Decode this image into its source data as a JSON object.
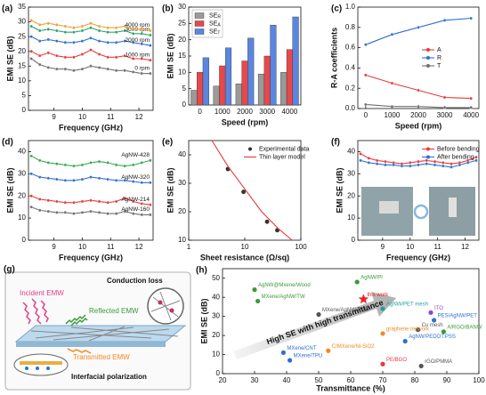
{
  "chart_data": [
    {
      "type": "line",
      "panel": "(a)",
      "xlabel": "Frequency (GHz)",
      "ylabel": "EMI SE (dB)",
      "legend": "inline",
      "x": [
        8.2,
        8.5,
        8.8,
        9.1,
        9.4,
        9.7,
        10.0,
        10.3,
        10.6,
        10.9,
        11.2,
        11.5,
        11.8,
        12.1,
        12.4
      ],
      "xlim": [
        8.1,
        12.5
      ],
      "xticks": [
        9,
        10,
        11,
        12
      ],
      "ylim": [
        0,
        35
      ],
      "yticks": [
        0,
        5,
        10,
        15,
        20,
        25,
        30,
        35
      ],
      "series": [
        {
          "name": "0 rpm",
          "color": "#707070",
          "values": [
            17.5,
            15.5,
            14.5,
            14,
            14,
            13.5,
            14,
            15,
            14.5,
            14,
            13.5,
            13.5,
            13,
            12.5,
            12.5
          ]
        },
        {
          "name": "1000 rpm",
          "color": "#e8393b",
          "values": [
            20,
            18.5,
            19.5,
            18.5,
            18,
            18,
            19,
            20.5,
            19,
            18,
            18,
            18.5,
            17.5,
            17.5,
            17
          ]
        },
        {
          "name": "2000 rpm",
          "color": "#2f6fcf",
          "values": [
            25,
            23.5,
            24,
            23.5,
            23,
            23,
            23.5,
            24.5,
            23.5,
            23,
            23,
            23.5,
            23,
            22.5,
            22
          ]
        },
        {
          "name": "3000 rpm",
          "color": "#2aa36b",
          "values": [
            28.5,
            27,
            27.5,
            27,
            26.5,
            26.5,
            27,
            28,
            27,
            26.5,
            26.5,
            27,
            26,
            26,
            25.5
          ]
        },
        {
          "name": "4000 rpm",
          "color": "#f0a030",
          "values": [
            30.5,
            29,
            29.5,
            29,
            28.5,
            28,
            28.5,
            29.5,
            28.5,
            28,
            28,
            28.5,
            27.5,
            27.5,
            27
          ]
        }
      ]
    },
    {
      "type": "bar",
      "panel": "(b)",
      "xlabel": "Speed (rpm)",
      "ylabel": "EMI SE (dB)",
      "legend": "upper left",
      "categories": [
        "0",
        "1000",
        "2000",
        "3000",
        "4000"
      ],
      "ylim": [
        0,
        30
      ],
      "yticks": [
        0,
        5,
        10,
        15,
        20,
        25,
        30
      ],
      "series": [
        {
          "name": "SER",
          "color": "#9a9a9a",
          "values": [
            4.5,
            5.8,
            6.5,
            9.5,
            10
          ]
        },
        {
          "name": "SEA",
          "color": "#e8484a",
          "values": [
            10,
            12,
            13.5,
            15,
            17
          ]
        },
        {
          "name": "SET",
          "color": "#5a86e0",
          "values": [
            14.5,
            17.5,
            20.5,
            24.5,
            27
          ]
        }
      ]
    },
    {
      "type": "line",
      "panel": "(c)",
      "xlabel": "Speed (rpm)",
      "ylabel": "R-A coefficients",
      "legend": "center right",
      "x": [
        0,
        1000,
        2000,
        3000,
        4000
      ],
      "xlim": [
        -300,
        4300
      ],
      "xticks": [
        0,
        1000,
        2000,
        3000,
        4000
      ],
      "ylim": [
        0,
        1
      ],
      "yticks": [
        {
          "value": 0,
          "label": "0.0"
        },
        {
          "value": 0.2,
          "label": "0.2"
        },
        {
          "value": 0.4,
          "label": "0.4"
        },
        {
          "value": 0.6,
          "label": "0.6"
        },
        {
          "value": 0.8,
          "label": "0.8"
        },
        {
          "value": 1,
          "label": "1.0"
        }
      ],
      "series": [
        {
          "name": "A",
          "color": "#e8393b",
          "values": [
            0.33,
            0.25,
            0.18,
            0.11,
            0.1
          ]
        },
        {
          "name": "R",
          "color": "#2f6fcf",
          "values": [
            0.63,
            0.73,
            0.8,
            0.87,
            0.89
          ]
        },
        {
          "name": "T",
          "color": "#707070",
          "values": [
            0.04,
            0.02,
            0.02,
            0.01,
            0.01
          ]
        }
      ]
    },
    {
      "type": "line",
      "panel": "(d)",
      "xlabel": "Frequency (GHz)",
      "ylabel": "EMI SE (dB)",
      "legend": "inline",
      "x": [
        8.2,
        8.5,
        8.8,
        9.1,
        9.4,
        9.7,
        10.0,
        10.3,
        10.6,
        10.9,
        11.2,
        11.5,
        11.8,
        12.1,
        12.4
      ],
      "xlim": [
        8.1,
        12.5
      ],
      "xticks": [
        9,
        10,
        11,
        12
      ],
      "ylim": [
        0,
        45
      ],
      "yticks": [
        0,
        10,
        20,
        30,
        40
      ],
      "series": [
        {
          "name": "AgNW-428",
          "color": "#3aa856",
          "values": [
            38,
            36,
            35,
            34.5,
            34,
            33.5,
            34,
            35,
            35.5,
            35,
            34,
            33.5,
            34,
            35,
            36
          ]
        },
        {
          "name": "AgNW-320",
          "color": "#2f6fcf",
          "values": [
            30,
            28.5,
            28,
            27.5,
            27,
            27,
            27.5,
            28.5,
            28,
            27.5,
            27,
            27,
            26.5,
            26,
            26
          ]
        },
        {
          "name": "AgNW-214",
          "color": "#e8393b",
          "values": [
            20,
            18.5,
            18,
            17.5,
            17,
            17,
            17.5,
            18,
            17.5,
            17,
            17.5,
            19,
            17.5,
            16.5,
            16
          ]
        },
        {
          "name": "AgNW-160",
          "color": "#707070",
          "values": [
            15,
            13.5,
            13,
            12.5,
            12.5,
            12,
            12.5,
            13,
            12.5,
            12,
            12,
            13,
            12,
            11.5,
            11.5
          ]
        }
      ]
    },
    {
      "type": "scatter",
      "panel": "(e)",
      "xlabel": "Sheet resistance (Ω/sq)",
      "ylabel": "EMI SE (dB)",
      "legend": "upper right",
      "log_x": true,
      "xlim": [
        1,
        100
      ],
      "xticks": [
        1,
        10,
        100
      ],
      "ylim": [
        10,
        45
      ],
      "yticks": [
        10,
        20,
        30,
        40
      ],
      "series": [
        {
          "name": "Experimental data",
          "color": "#333333",
          "mode": "markers",
          "x": [
            5,
            9.5,
            25,
            38
          ],
          "values": [
            35,
            27,
            16.5,
            13.5
          ]
        },
        {
          "name": "Thin layer model",
          "color": "#e8393b",
          "mode": "lines",
          "x": [
            2.6,
            5,
            10,
            20,
            40,
            70
          ],
          "values": [
            45,
            36,
            28,
            20,
            14,
            10
          ]
        }
      ]
    },
    {
      "type": "line",
      "panel": "(f)",
      "xlabel": "Frequency (GHz)",
      "ylabel": "EMI SE (dB)",
      "legend": "upper right",
      "x": [
        8.2,
        8.5,
        8.8,
        9.1,
        9.4,
        9.7,
        10.0,
        10.3,
        10.6,
        10.9,
        11.2,
        11.5,
        11.8,
        12.1,
        12.4
      ],
      "xlim": [
        8.1,
        12.5
      ],
      "xticks": [
        9,
        10,
        11,
        12
      ],
      "ylim": [
        0,
        45
      ],
      "yticks": [
        0,
        10,
        20,
        30,
        40
      ],
      "series": [
        {
          "name": "Before bending",
          "color": "#e8393b",
          "values": [
            39,
            37,
            36,
            35.5,
            35,
            34.5,
            35,
            35.5,
            36,
            35.5,
            35,
            34.5,
            35,
            36,
            37.5
          ]
        },
        {
          "name": "After bending",
          "color": "#2f6fcf",
          "values": [
            36,
            35,
            34.5,
            34,
            34,
            33.5,
            33.5,
            34,
            34.5,
            34,
            33.5,
            33,
            34,
            35,
            36
          ]
        }
      ]
    },
    {
      "type": "scatter",
      "panel": "(h)",
      "xlabel": "Transmittance (%)",
      "ylabel": "EMI SE (dB)",
      "annotation": "High SE with high transmittance",
      "xlim": [
        20,
        100
      ],
      "xticks": [
        20,
        30,
        40,
        50,
        60,
        70,
        80,
        90,
        100
      ],
      "ylim": [
        0,
        55
      ],
      "yticks": [
        0,
        10,
        20,
        30,
        40,
        50
      ],
      "points": [
        {
          "label": "AgNW@Mxene/Wood",
          "x": 30,
          "y": 44,
          "color": "#3a9a3a"
        },
        {
          "label": "MXene/AgNW/TW",
          "x": 31,
          "y": 38,
          "color": "#3a9a3a"
        },
        {
          "label": "AgNW/PI",
          "x": 62,
          "y": 48,
          "color": "#3a9a3a"
        },
        {
          "label": "this work",
          "x": 64,
          "y": 39,
          "color": "#e8242a",
          "marker": "star"
        },
        {
          "label": "MXene/AgNW/PVA",
          "x": 50,
          "y": 31,
          "color": "#555555"
        },
        {
          "label": "AgNW/PET mesh",
          "x": 70,
          "y": 34,
          "color": "#22a0a0"
        },
        {
          "label": "ITO",
          "x": 85,
          "y": 32,
          "color": "#8a4cc0"
        },
        {
          "label": "PES/AgNW/PET",
          "x": 86,
          "y": 28,
          "color": "#2f6fcf"
        },
        {
          "label": "Cu mesh",
          "x": 81,
          "y": 23,
          "color": "#555555"
        },
        {
          "label": "A/RGO/BANW",
          "x": 89,
          "y": 22,
          "color": "#3a9a3a"
        },
        {
          "label": "graphene network",
          "x": 70,
          "y": 21,
          "color": "#f08a20"
        },
        {
          "label": "AgNW/PEDOT:PSS",
          "x": 77,
          "y": 17,
          "color": "#2f6fcf"
        },
        {
          "label": "MXene/CNT",
          "x": 39,
          "y": 11,
          "color": "#2f6fcf"
        },
        {
          "label": "MXene/TPU",
          "x": 41,
          "y": 7,
          "color": "#2f6fcf"
        },
        {
          "label": "C/MXene/Ni-SiO2",
          "x": 53,
          "y": 12,
          "color": "#f08a20"
        },
        {
          "label": "PE/BGO",
          "x": 70,
          "y": 5,
          "color": "#e8393b"
        },
        {
          "label": "rGO/PMMA",
          "x": 82,
          "y": 4,
          "color": "#555555"
        }
      ]
    }
  ],
  "diagram": {
    "panel": "(g)",
    "labels": [
      "Conduction loss",
      "Incident EMW",
      "Reflected EMW",
      "Transmitted EMW",
      "Interfacial polarization"
    ]
  }
}
